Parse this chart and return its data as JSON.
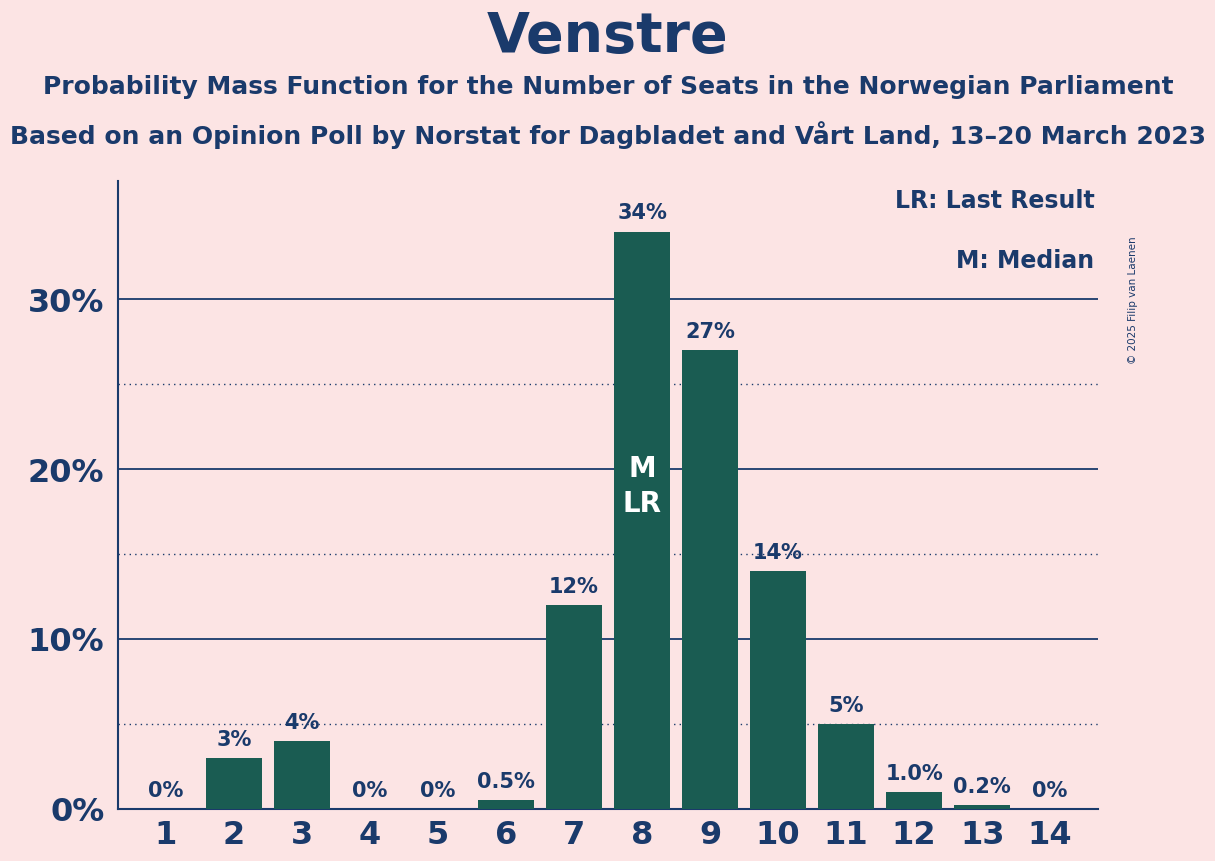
{
  "title": "Venstre",
  "subtitle1": "Probability Mass Function for the Number of Seats in the Norwegian Parliament",
  "subtitle2": "Based on an Opinion Poll by Norstat for Dagbladet and Vårt Land, 13–20 March 2023",
  "copyright": "© 2025 Filip van Laenen",
  "categories": [
    1,
    2,
    3,
    4,
    5,
    6,
    7,
    8,
    9,
    10,
    11,
    12,
    13,
    14
  ],
  "values": [
    0.0,
    3.0,
    4.0,
    0.0,
    0.0,
    0.5,
    12.0,
    34.0,
    27.0,
    14.0,
    5.0,
    1.0,
    0.2,
    0.0
  ],
  "labels": [
    "0%",
    "3%",
    "4%",
    "0%",
    "0%",
    "0.5%",
    "12%",
    "34%",
    "27%",
    "14%",
    "5%",
    "1.0%",
    "0.2%",
    "0%"
  ],
  "bar_color": "#1a5c52",
  "bar_label_color": "#1a3a6b",
  "background_color": "#fce4e4",
  "title_color": "#1a3a6b",
  "axis_color": "#1a3a6b",
  "median_bar_idx": 7,
  "median_label": "M",
  "lr_label": "LR",
  "legend_lr": "LR: Last Result",
  "legend_m": "M: Median",
  "ytick_labels": [
    "0%",
    "10%",
    "20%",
    "30%"
  ],
  "solid_yticks": [
    0,
    10,
    20,
    30
  ],
  "dotted_yticks": [
    5,
    15,
    25
  ],
  "ylim": [
    0,
    37
  ],
  "title_fontsize": 40,
  "subtitle_fontsize": 18,
  "tick_fontsize": 23,
  "label_fontsize": 15,
  "legend_fontsize": 17,
  "inner_label_fontsize": 20
}
